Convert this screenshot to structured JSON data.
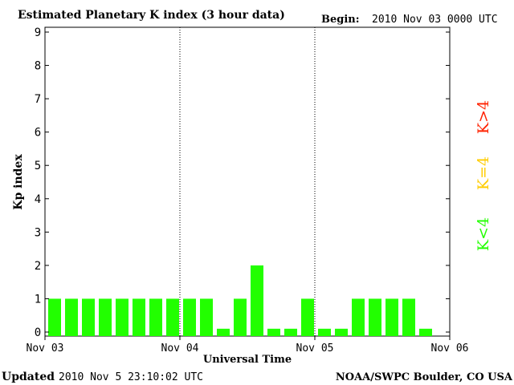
{
  "header": {
    "title": "Estimated Planetary K index (3 hour data)",
    "begin_label": "Begin:",
    "begin_value": "2010 Nov 03 0000 UTC"
  },
  "footer": {
    "updated_label": "Updated",
    "updated_value": "2010 Nov  5 23:10:02 UTC",
    "source": "NOAA/SWPC Boulder, CO USA"
  },
  "legend": {
    "high": {
      "text": "K>4",
      "color": "#ff2200"
    },
    "mid": {
      "text": "K=4",
      "color": "#ffcc00"
    },
    "low": {
      "text": "K<4",
      "color": "#22ff00"
    }
  },
  "colors": {
    "bar": "#22ff00",
    "axis": "#000000"
  },
  "chart_data": {
    "type": "bar",
    "ylabel": "Kp index",
    "xlabel": "Universal Time",
    "ylim": [
      0,
      9
    ],
    "yticks": [
      0,
      1,
      2,
      3,
      4,
      5,
      6,
      7,
      8,
      9
    ],
    "x_tick_labels": [
      "Nov 03",
      "Nov 04",
      "Nov 05",
      "Nov 06"
    ],
    "day_separators": [
      "Nov 04",
      "Nov 05"
    ],
    "bars_per_day": 8,
    "values": [
      1,
      1,
      1,
      1,
      1,
      1,
      1,
      1,
      1,
      1,
      0.1,
      1,
      2,
      0.1,
      0.1,
      1,
      0.1,
      0.1,
      1,
      1,
      1,
      1,
      0.1,
      null
    ]
  }
}
